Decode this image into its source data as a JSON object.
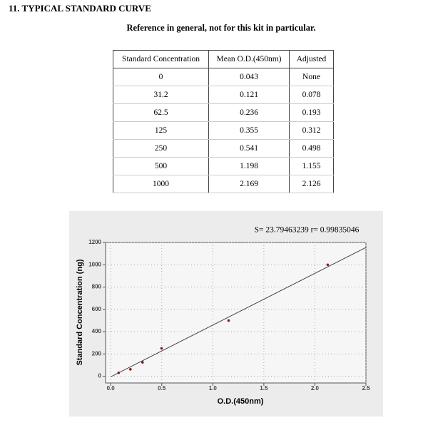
{
  "header": {
    "title": "11. TYPICAL STANDARD CURVE",
    "subtitle": "Reference in general, not for this kit in particular."
  },
  "table": {
    "columns": [
      "Standard Concentration",
      "Mean O.D.(450nm)",
      "Adjusted"
    ],
    "rows": [
      [
        0,
        0.043,
        "None"
      ],
      [
        31.2,
        0.121,
        0.078
      ],
      [
        62.5,
        0.236,
        0.193
      ],
      [
        125,
        0.355,
        0.312
      ],
      [
        250,
        0.541,
        0.498
      ],
      [
        500,
        1.198,
        1.155
      ],
      [
        1000,
        2.169,
        2.126
      ]
    ]
  },
  "chart_data": {
    "type": "scatter",
    "annotation": "S= 23.79463239  r= 0.99835046",
    "x_label": "O.D.(450nm)",
    "y_label": "Standard Concentration (ng)",
    "x": [
      0.078,
      0.193,
      0.312,
      0.498,
      1.155,
      2.126
    ],
    "values": [
      31.2,
      62.5,
      125,
      250,
      500,
      1000
    ],
    "color": "#8b1a1a",
    "fit_line": {
      "x": [
        0,
        2.5
      ],
      "values": [
        -5,
        1155
      ],
      "color": "#444444"
    },
    "xlim": [
      -0.05,
      2.5
    ],
    "ylim": [
      -60,
      1200
    ],
    "xticks": [
      {
        "value": 0,
        "label": "0.0"
      },
      0.5,
      {
        "value": 1,
        "label": "1.0"
      },
      1.5,
      {
        "value": 2,
        "label": "2.0"
      },
      2.5
    ],
    "yticks": [
      0,
      200,
      400,
      600,
      800,
      1000,
      1200
    ],
    "grid": true
  }
}
